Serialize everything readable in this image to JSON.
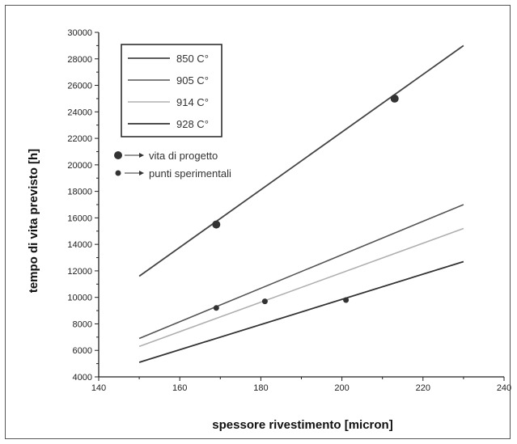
{
  "chart_data": {
    "type": "line",
    "xlabel": "spessore rivestimento [micron]",
    "ylabel": "tempo di vita previsto [h]",
    "xlim": [
      140,
      240
    ],
    "ylim": [
      4000,
      30000
    ],
    "x_ticks": [
      "140",
      "160",
      "180",
      "200",
      "220",
      "240"
    ],
    "y_ticks": [
      "4000",
      "6000",
      "8000",
      "10000",
      "12000",
      "14000",
      "16000",
      "18000",
      "20000",
      "22000",
      "24000",
      "26000",
      "28000",
      "30000"
    ],
    "grid": false,
    "legend_position": "top-left",
    "series": [
      {
        "name": "850 C°",
        "color": "#444444",
        "width": 1.8,
        "x": [
          150,
          230
        ],
        "y": [
          11600,
          29000
        ]
      },
      {
        "name": "905 C°",
        "color": "#555555",
        "width": 1.6,
        "x": [
          150,
          230
        ],
        "y": [
          6900,
          17000
        ]
      },
      {
        "name": "914 C°",
        "color": "#b0b0b0",
        "width": 1.6,
        "x": [
          150,
          230
        ],
        "y": [
          6300,
          15200
        ]
      },
      {
        "name": "928 C°",
        "color": "#333333",
        "width": 1.8,
        "x": [
          150,
          230
        ],
        "y": [
          5100,
          12700
        ]
      }
    ],
    "markers": [
      {
        "name": "vita di progetto",
        "size": 5,
        "points": [
          [
            169,
            15500
          ],
          [
            213,
            25000
          ]
        ]
      },
      {
        "name": "punti sperimentali",
        "size": 3.5,
        "points": [
          [
            169,
            9200
          ],
          [
            181,
            9700
          ],
          [
            201,
            9800
          ]
        ]
      }
    ]
  }
}
